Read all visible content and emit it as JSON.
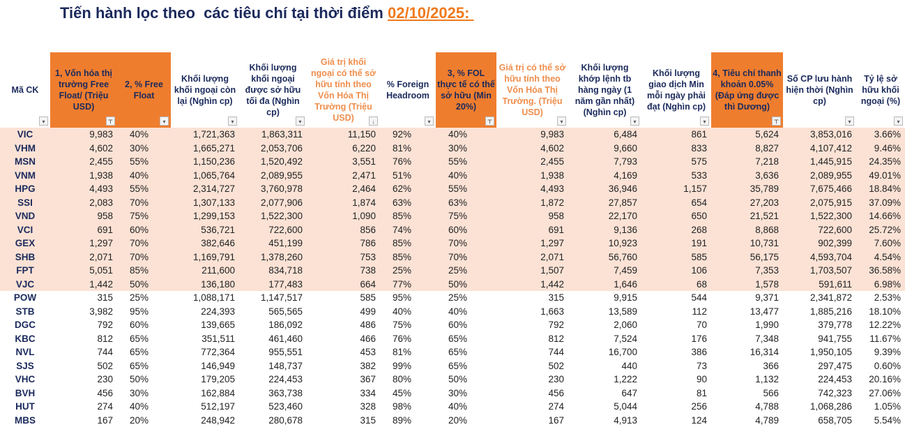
{
  "title": {
    "text": "Tiến hành lọc theo  các tiêu chí tại thời điểm ",
    "date": "02/10/2025: "
  },
  "colors": {
    "accent_orange": "#ef7d2e",
    "highlight_row": "#fbe2d5",
    "navy": "#1b2a5c"
  },
  "headers": [
    {
      "label": "Mã CK",
      "style": "",
      "filter": "dropdown"
    },
    {
      "label": "1, Vốn hóa thị trường Free Float/ (Triệu USD)",
      "style": "orange",
      "filter": "filter-active"
    },
    {
      "label": "2, % Free Float",
      "style": "orange",
      "filter": "dropdown"
    },
    {
      "label": "Khối lượng khối ngoại còn lại (Nghìn cp)",
      "style": "",
      "filter": "dropdown"
    },
    {
      "label": "Khối lượng khối ngoại được sở hữu tối đa (Nghìn cp)",
      "style": "",
      "filter": "dropdown"
    },
    {
      "label": "Giá trị khối ngoại có thể sở hữu tính theo Vốn Hóa Thị Trường (Triệu USD)",
      "style": "otext",
      "filter": "sort-desc"
    },
    {
      "label": "% Foreign Headroom",
      "style": "",
      "filter": "dropdown"
    },
    {
      "label": "3, % FOL thực tế có thể sở hữu (Min 20%)",
      "style": "orange",
      "filter": "filter-active"
    },
    {
      "label": "Giá trị có thể sở hữu tính theo Vốn Hóa Thị Trường. (Triệu USD)",
      "style": "otext",
      "filter": "dropdown"
    },
    {
      "label": "Khối lượng khớp lệnh tb hàng ngày (1 năm gần nhất) (Nghìn cp)",
      "style": "",
      "filter": "dropdown"
    },
    {
      "label": "Khối lượng giao dịch Min mỗi ngày phải đạt (Nghìn cp)",
      "style": "",
      "filter": "dropdown"
    },
    {
      "label": "4, Tiêu chí thanh khoản 0.05% (Đáp ứng được thì Dương)",
      "style": "orange",
      "filter": "filter-active"
    },
    {
      "label": "Số CP lưu hành hiện thời (Nghìn cp)",
      "style": "",
      "filter": "dropdown"
    },
    {
      "label": "Tỷ lệ sở hữu khối ngoại (%)",
      "style": "",
      "filter": "dropdown"
    }
  ],
  "rows": [
    [
      "VIC",
      "9,983",
      "40%",
      "1,721,363",
      "1,863,311",
      "11,150",
      "92%",
      "40%",
      "9,983",
      "6,484",
      "861",
      "5,624",
      "3,853,016",
      "3.66%"
    ],
    [
      "VHM",
      "4,602",
      "30%",
      "1,665,271",
      "2,053,706",
      "6,220",
      "81%",
      "30%",
      "4,602",
      "9,660",
      "833",
      "8,827",
      "4,107,412",
      "9.46%"
    ],
    [
      "MSN",
      "2,455",
      "55%",
      "1,150,236",
      "1,520,492",
      "3,551",
      "76%",
      "55%",
      "2,455",
      "7,793",
      "575",
      "7,218",
      "1,445,915",
      "24.35%"
    ],
    [
      "VNM",
      "1,938",
      "40%",
      "1,065,764",
      "2,089,955",
      "2,471",
      "51%",
      "40%",
      "1,938",
      "4,169",
      "533",
      "3,636",
      "2,089,955",
      "49.01%"
    ],
    [
      "HPG",
      "4,493",
      "55%",
      "2,314,727",
      "3,760,978",
      "2,464",
      "62%",
      "55%",
      "4,493",
      "36,946",
      "1,157",
      "35,789",
      "7,675,466",
      "18.84%"
    ],
    [
      "SSI",
      "2,083",
      "70%",
      "1,307,133",
      "2,077,906",
      "1,874",
      "63%",
      "63%",
      "1,872",
      "27,857",
      "654",
      "27,203",
      "2,075,915",
      "37.09%"
    ],
    [
      "VND",
      "958",
      "75%",
      "1,299,153",
      "1,522,300",
      "1,090",
      "85%",
      "75%",
      "958",
      "22,170",
      "650",
      "21,521",
      "1,522,300",
      "14.66%"
    ],
    [
      "VCI",
      "691",
      "60%",
      "536,721",
      "722,600",
      "856",
      "74%",
      "60%",
      "691",
      "9,136",
      "268",
      "8,868",
      "722,600",
      "25.72%"
    ],
    [
      "GEX",
      "1,297",
      "70%",
      "382,646",
      "451,199",
      "786",
      "85%",
      "70%",
      "1,297",
      "10,923",
      "191",
      "10,731",
      "902,399",
      "7.60%"
    ],
    [
      "SHB",
      "2,071",
      "70%",
      "1,169,791",
      "1,378,260",
      "753",
      "85%",
      "70%",
      "2,071",
      "56,760",
      "585",
      "56,175",
      "4,593,704",
      "4.54%"
    ],
    [
      "FPT",
      "5,051",
      "85%",
      "211,600",
      "834,718",
      "738",
      "25%",
      "25%",
      "1,507",
      "7,459",
      "106",
      "7,353",
      "1,703,507",
      "36.58%"
    ],
    [
      "VJC",
      "1,442",
      "50%",
      "136,180",
      "177,483",
      "664",
      "77%",
      "50%",
      "1,442",
      "1,646",
      "68",
      "1,578",
      "591,611",
      "6.98%"
    ],
    [
      "POW",
      "315",
      "25%",
      "1,088,171",
      "1,147,517",
      "585",
      "95%",
      "25%",
      "315",
      "9,915",
      "544",
      "9,371",
      "2,341,872",
      "2.53%"
    ],
    [
      "STB",
      "3,982",
      "95%",
      "224,393",
      "565,565",
      "499",
      "40%",
      "40%",
      "1,663",
      "13,589",
      "112",
      "13,477",
      "1,885,216",
      "18.10%"
    ],
    [
      "DGC",
      "792",
      "60%",
      "139,665",
      "186,092",
      "486",
      "75%",
      "60%",
      "792",
      "2,060",
      "70",
      "1,990",
      "379,778",
      "12.22%"
    ],
    [
      "KBC",
      "812",
      "65%",
      "351,511",
      "461,460",
      "466",
      "76%",
      "65%",
      "812",
      "7,524",
      "176",
      "7,348",
      "941,755",
      "11.67%"
    ],
    [
      "NVL",
      "744",
      "65%",
      "772,364",
      "955,551",
      "453",
      "81%",
      "65%",
      "744",
      "16,700",
      "386",
      "16,314",
      "1,950,105",
      "9.39%"
    ],
    [
      "SJS",
      "502",
      "65%",
      "146,949",
      "148,737",
      "382",
      "99%",
      "65%",
      "502",
      "440",
      "73",
      "366",
      "297,475",
      "0.60%"
    ],
    [
      "VHC",
      "230",
      "50%",
      "179,205",
      "224,453",
      "367",
      "80%",
      "50%",
      "230",
      "1,222",
      "90",
      "1,132",
      "224,453",
      "20.16%"
    ],
    [
      "BVH",
      "456",
      "30%",
      "162,884",
      "363,738",
      "334",
      "45%",
      "30%",
      "456",
      "647",
      "81",
      "566",
      "742,323",
      "27.06%"
    ],
    [
      "HUT",
      "274",
      "40%",
      "512,197",
      "523,460",
      "328",
      "98%",
      "40%",
      "274",
      "5,044",
      "256",
      "4,788",
      "1,068,286",
      "1.05%"
    ],
    [
      "MBS",
      "167",
      "20%",
      "248,942",
      "280,678",
      "315",
      "89%",
      "20%",
      "167",
      "4,913",
      "124",
      "4,789",
      "658,705",
      "5.54%"
    ]
  ],
  "highlighted_row_count": 12
}
